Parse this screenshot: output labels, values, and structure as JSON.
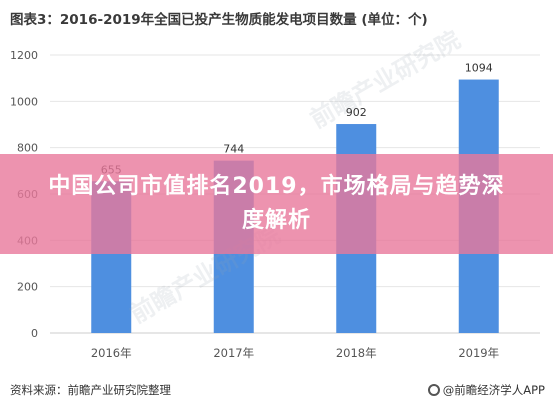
{
  "banner": {
    "text": "中国公司市值排名2019，市场格局与趋势深度解析"
  },
  "footer": {
    "source": "资料来源：前瞻产业研究院整理",
    "brand": "@前瞻经济学人APP",
    "brand_logo_icon": "qianzhan-logo-icon"
  },
  "watermarks": [
    "前瞻产业研究院",
    "前瞻产业研究院"
  ],
  "colors": {
    "bar": "#4e8fe0",
    "grid": "#e6e6e6",
    "axis_text": "#555555",
    "banner": "#e8789b"
  },
  "chart_data": {
    "type": "bar",
    "title": "图表3：2016-2019年全国已投产生物质能发电项目数量 (单位：个)",
    "categories": [
      "2016年",
      "2017年",
      "2018年",
      "2019年"
    ],
    "values": [
      655,
      744,
      902,
      1094
    ],
    "data_labels": [
      "655",
      "744",
      "902",
      "1094"
    ],
    "ylim": [
      0,
      1200
    ],
    "yticks": [
      0,
      200,
      400,
      600,
      800,
      1000,
      1200
    ],
    "ytick_labels": [
      "0",
      "200",
      "400",
      "600",
      "800",
      "1000",
      "1200"
    ],
    "grid": true
  }
}
